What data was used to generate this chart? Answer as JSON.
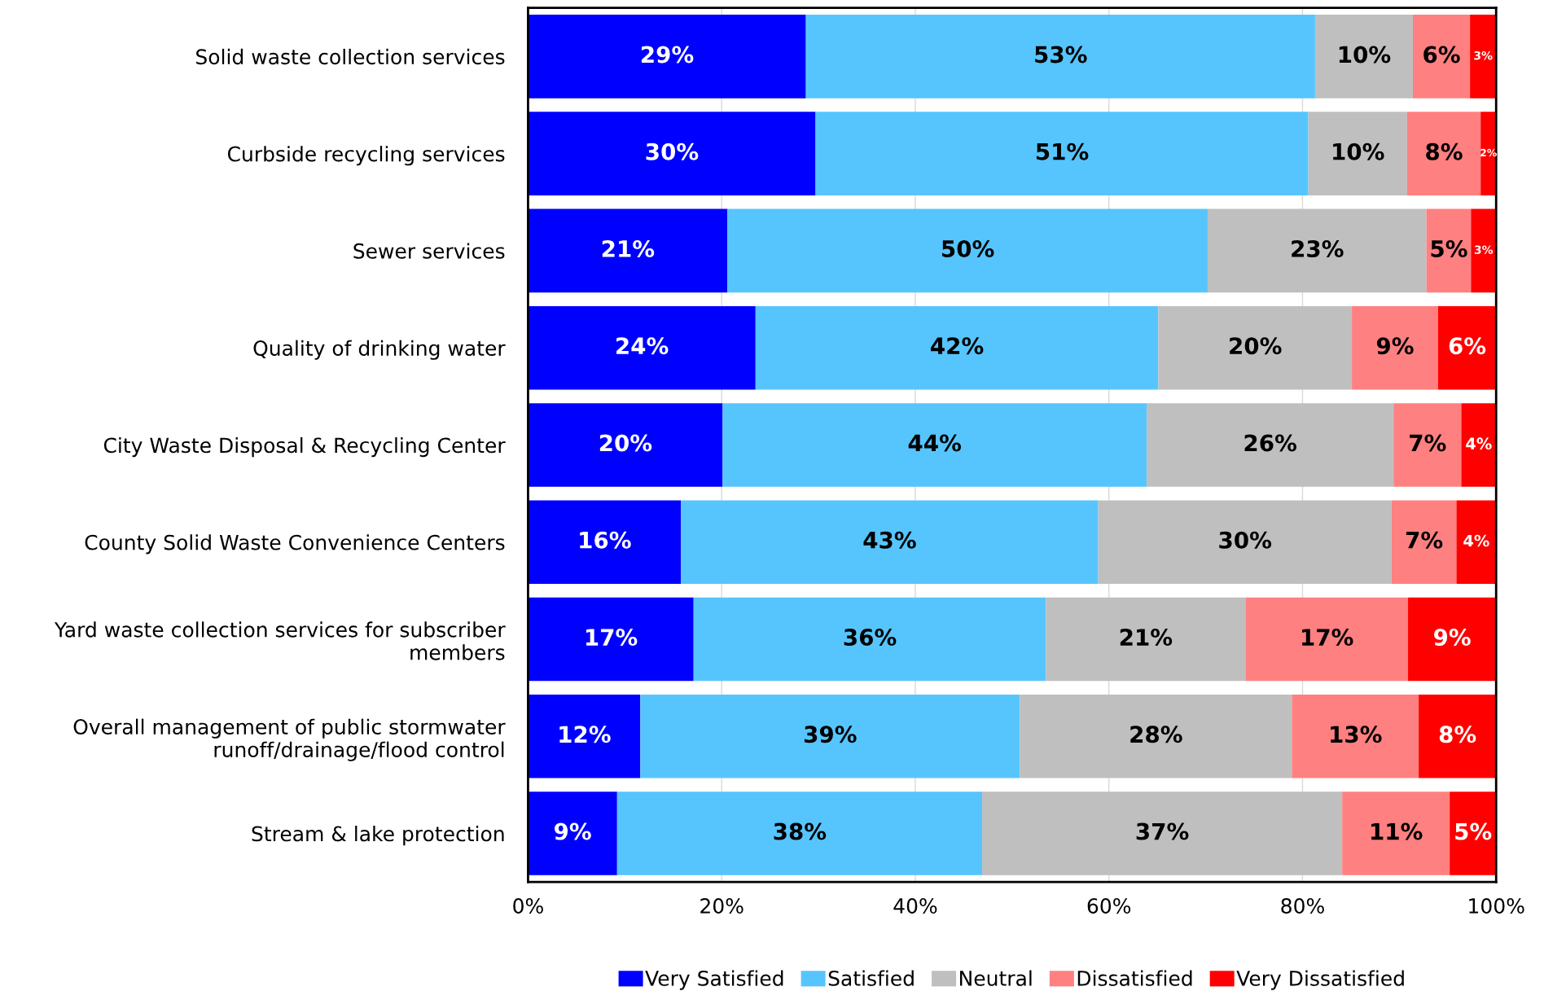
{
  "chart_data": {
    "type": "bar",
    "orientation": "horizontal",
    "stacked": true,
    "grid": "x",
    "legend": "bottom",
    "categories": [
      "Solid waste collection services",
      "Curbside recycling services",
      "Sewer services",
      "Quality of drinking water",
      "City Waste Disposal & Recycling Center",
      "County Solid Waste Convenience Centers",
      "Yard waste collection services for subscriber\nmembers",
      "Overall management of public stormwater\nrunoff/drainage/flood control",
      "Stream & lake protection"
    ],
    "series": [
      {
        "name": "Very Satisfied",
        "color": "#0000ff",
        "values": [
          28.7,
          29.7,
          20.6,
          23.5,
          20.1,
          15.8,
          17.1,
          11.6,
          9.2
        ],
        "value_labels": [
          "29%",
          "30%",
          "21%",
          "24%",
          "20%",
          "16%",
          "17%",
          "12%",
          "9%"
        ]
      },
      {
        "name": "Satisfied",
        "color": "#57c5fd",
        "values": [
          52.6,
          50.9,
          49.6,
          41.6,
          43.8,
          43.1,
          36.4,
          39.2,
          37.7
        ],
        "value_labels": [
          "53%",
          "51%",
          "50%",
          "42%",
          "44%",
          "43%",
          "36%",
          "39%",
          "38%"
        ]
      },
      {
        "name": "Neutral",
        "color": "#bfbfbf",
        "values": [
          10.1,
          10.2,
          22.6,
          20.0,
          25.5,
          30.3,
          20.6,
          28.1,
          37.2
        ],
        "value_labels": [
          "10%",
          "10%",
          "23%",
          "20%",
          "26%",
          "30%",
          "21%",
          "28%",
          "37%"
        ]
      },
      {
        "name": "Dissatisfied",
        "color": "#ff8080",
        "values": [
          5.9,
          7.6,
          4.6,
          8.9,
          7.0,
          6.7,
          16.8,
          13.1,
          11.1
        ],
        "value_labels": [
          "6%",
          "8%",
          "5%",
          "9%",
          "7%",
          "7%",
          "17%",
          "13%",
          "11%"
        ]
      },
      {
        "name": "Very Dissatisfied",
        "color": "#ff0000",
        "values": [
          2.7,
          1.6,
          2.6,
          6.0,
          3.6,
          4.1,
          9.1,
          8.0,
          4.8
        ],
        "value_labels": [
          "3%",
          "2%",
          "3%",
          "6%",
          "4%",
          "4%",
          "9%",
          "8%",
          "5%"
        ]
      }
    ],
    "xlim": [
      0,
      100
    ],
    "xticks": [
      {
        "value": 0,
        "label": "0%"
      },
      {
        "value": 20,
        "label": "20%"
      },
      {
        "value": 40,
        "label": "40%"
      },
      {
        "value": 60,
        "label": "60%"
      },
      {
        "value": 80,
        "label": "80%"
      },
      {
        "value": 100,
        "label": "100%"
      }
    ]
  }
}
